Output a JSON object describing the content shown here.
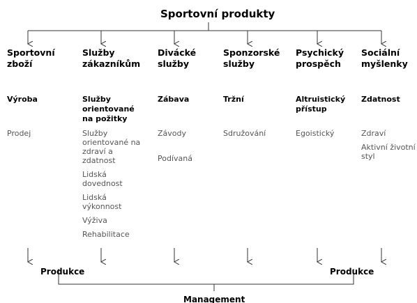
{
  "title": "Sportovní produkty",
  "columns": [
    {
      "heading": [
        "Sportovní",
        "zboží"
      ],
      "primary": [
        "Výroba"
      ],
      "items": [
        [
          "Prodej"
        ]
      ]
    },
    {
      "heading": [
        "Služby",
        "zákazníkům"
      ],
      "primary": [
        "Služby",
        "orientované",
        "na požitky"
      ],
      "items": [
        [
          "Služby",
          "orientované na",
          "zdraví a",
          "zdatnost"
        ],
        [
          "Lidská",
          "dovednost"
        ],
        [
          "Lidská",
          "výkonnost"
        ],
        [
          "Výživa"
        ],
        [
          "Rehabilitace"
        ]
      ]
    },
    {
      "heading": [
        "Divácké",
        "služby"
      ],
      "primary": [
        "Zábava"
      ],
      "items": [
        [
          "Závody"
        ],
        [
          "Podívaná"
        ]
      ]
    },
    {
      "heading": [
        "Sponzorské",
        "služby"
      ],
      "primary": [
        "Tržní"
      ],
      "items": [
        [
          "Sdružování"
        ]
      ]
    },
    {
      "heading": [
        "Psychický",
        "prospěch"
      ],
      "primary": [
        "Altruistický",
        "přístup"
      ],
      "items": [
        [
          "Egoistický"
        ]
      ]
    },
    {
      "heading": [
        "Sociální",
        "myšlenky"
      ],
      "primary": [
        "Zdatnost"
      ],
      "items": [
        [
          "Zdraví"
        ],
        [
          "Aktivní životní",
          "styl"
        ]
      ]
    }
  ],
  "bottom": {
    "left": "Produkce",
    "right": "Produkce",
    "label": "Management"
  }
}
